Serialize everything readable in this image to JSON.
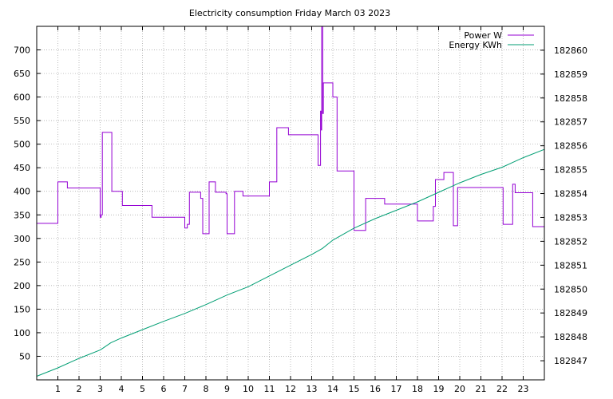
{
  "chart_data": {
    "type": "line",
    "title": "Electricity consumption Friday March 03 2023",
    "xlabel": "",
    "ylabel": "",
    "y2label": "",
    "xlim": [
      0,
      24
    ],
    "ylim": [
      0,
      750
    ],
    "y2lim": [
      182846.2,
      182861.0
    ],
    "x_ticks": [
      1,
      2,
      3,
      4,
      5,
      6,
      7,
      8,
      9,
      10,
      11,
      12,
      13,
      14,
      15,
      16,
      17,
      18,
      19,
      20,
      21,
      22,
      23
    ],
    "y_ticks": [
      50,
      100,
      150,
      200,
      250,
      300,
      350,
      400,
      450,
      500,
      550,
      600,
      650,
      700
    ],
    "y2_ticks": [
      182847,
      182848,
      182849,
      182850,
      182851,
      182852,
      182853,
      182854,
      182855,
      182856,
      182857,
      182858,
      182859,
      182860
    ],
    "grid": true,
    "legend": "top-right",
    "series": [
      {
        "name": "Power W",
        "axis": "left",
        "color": "#9400d3",
        "step": true,
        "x": [
          0.0,
          1.0,
          1.45,
          3.0,
          3.05,
          3.1,
          3.55,
          4.05,
          5.45,
          7.0,
          7.12,
          7.22,
          7.75,
          7.85,
          8.15,
          8.45,
          8.95,
          9.0,
          9.35,
          9.75,
          11.0,
          11.35,
          11.9,
          13.0,
          13.3,
          13.42,
          13.45,
          13.47,
          13.52,
          13.55,
          13.58,
          13.6,
          14.0,
          14.2,
          15.0,
          15.55,
          16.45,
          17.0,
          18.0,
          18.75,
          18.85,
          19.25,
          19.7,
          19.75,
          19.9,
          21.95,
          22.05,
          22.5,
          22.55,
          22.62,
          23.45,
          24.0
        ],
        "values": [
          332,
          420,
          407,
          345,
          350,
          525,
          400,
          370,
          345,
          322,
          330,
          398,
          385,
          310,
          420,
          398,
          395,
          310,
          400,
          390,
          420,
          535,
          520,
          520,
          455,
          570,
          530,
          750,
          565,
          630,
          630,
          630,
          600,
          443,
          317,
          385,
          373,
          373,
          337,
          368,
          425,
          440,
          327,
          327,
          408,
          408,
          330,
          415,
          415,
          397,
          325,
          325
        ]
      },
      {
        "name": "Energy KWh",
        "axis": "right",
        "color": "#009e73",
        "step": false,
        "x": [
          0.0,
          1.0,
          2.0,
          3.0,
          3.5,
          4.0,
          5.0,
          6.0,
          7.0,
          8.0,
          9.0,
          10.0,
          11.0,
          12.0,
          13.0,
          13.5,
          14.0,
          15.0,
          16.0,
          17.0,
          18.0,
          19.0,
          20.0,
          21.0,
          22.0,
          22.5,
          23.0,
          24.0
        ],
        "values": [
          182846.35,
          182846.7,
          182847.1,
          182847.45,
          182847.75,
          182847.95,
          182848.3,
          182848.65,
          182848.98,
          182849.35,
          182849.75,
          182850.1,
          182850.55,
          182851.0,
          182851.45,
          182851.7,
          182852.05,
          182852.55,
          182852.95,
          182853.3,
          182853.65,
          182854.05,
          182854.45,
          182854.8,
          182855.1,
          182855.3,
          182855.5,
          182855.85
        ]
      }
    ]
  }
}
